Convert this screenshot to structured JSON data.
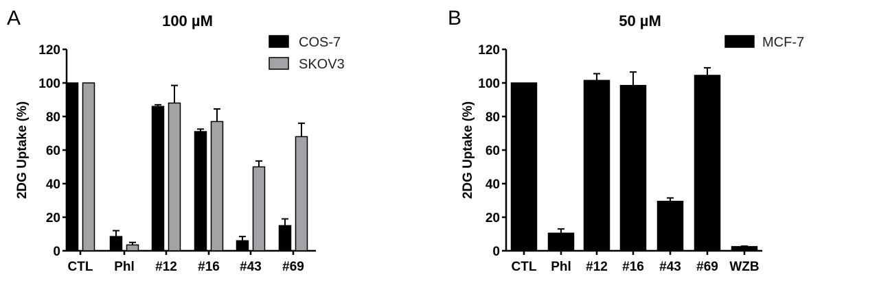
{
  "chart_data": [
    {
      "type": "bar",
      "panel_label": "A",
      "title": "100 µM",
      "ylabel": "2DG Uptake (%)",
      "xlabel": "",
      "ylim": [
        0,
        120
      ],
      "yticks": [
        0,
        20,
        40,
        60,
        80,
        100,
        120
      ],
      "grid": false,
      "legend": "top-right",
      "categories": [
        "CTL",
        "Phl",
        "#12",
        "#16",
        "#43",
        "#69"
      ],
      "series": [
        {
          "name": "COS-7",
          "color": "#000000",
          "values": [
            100,
            8.5,
            86,
            71,
            6,
            15
          ],
          "errors": [
            0,
            3.5,
            1,
            1.5,
            2.5,
            4
          ]
        },
        {
          "name": "SKOV3",
          "color": "#a3a3a7",
          "values": [
            100,
            3.5,
            88,
            77,
            50,
            68
          ],
          "errors": [
            0,
            1.5,
            10.5,
            7.5,
            3.5,
            8
          ]
        }
      ]
    },
    {
      "type": "bar",
      "panel_label": "B",
      "title": "50 µM",
      "ylabel": "2DG Uptake (%)",
      "xlabel": "",
      "ylim": [
        0,
        120
      ],
      "yticks": [
        0,
        20,
        40,
        60,
        80,
        100,
        120
      ],
      "grid": false,
      "legend": "top-right",
      "categories": [
        "CTL",
        "Phl",
        "#12",
        "#16",
        "#43",
        "#69",
        "WZB"
      ],
      "series": [
        {
          "name": "MCF-7",
          "color": "#000000",
          "values": [
            100,
            10.5,
            101.5,
            98.5,
            29.5,
            104.5,
            2.5
          ],
          "errors": [
            0,
            2.5,
            4,
            8,
            2,
            4.5,
            0.3
          ]
        }
      ]
    }
  ]
}
